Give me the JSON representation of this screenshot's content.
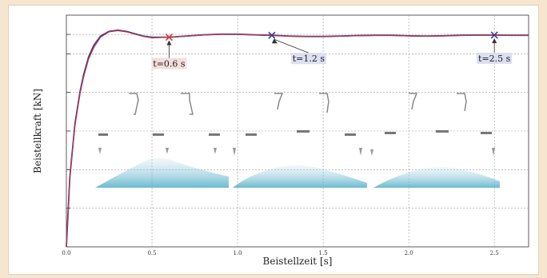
{
  "chart_data": {
    "type": "line",
    "xlabel": "Beistellzeit [s]",
    "ylabel": "Beistellkraft [kN]",
    "xlim": [
      0,
      2.7
    ],
    "ylim": [
      0,
      1.0
    ],
    "x_ticks": [
      "0.0",
      "0.5",
      "1.0",
      "1.5",
      "2.0",
      "2.5"
    ],
    "x_tick_values": [
      0,
      0.5,
      1.0,
      1.5,
      2.0,
      2.5
    ],
    "y_gridlines": [
      0.167,
      0.333,
      0.5,
      0.667,
      0.833,
      0.917
    ],
    "grid": true,
    "series": [
      {
        "color": "#3f3f9a",
        "x": [
          0,
          0.02,
          0.05,
          0.08,
          0.1,
          0.13,
          0.16,
          0.2,
          0.25,
          0.3,
          0.35,
          0.4,
          0.45,
          0.5,
          0.55,
          0.6,
          0.7,
          0.8,
          0.9,
          1.0,
          1.1,
          1.2,
          1.3,
          1.4,
          1.5,
          1.6,
          1.7,
          1.8,
          1.9,
          2.0,
          2.1,
          2.2,
          2.3,
          2.4,
          2.5,
          2.6,
          2.7
        ],
        "y": [
          0,
          0.3,
          0.53,
          0.67,
          0.74,
          0.82,
          0.87,
          0.91,
          0.93,
          0.935,
          0.93,
          0.92,
          0.91,
          0.905,
          0.905,
          0.905,
          0.91,
          0.915,
          0.918,
          0.918,
          0.915,
          0.913,
          0.91,
          0.908,
          0.908,
          0.91,
          0.912,
          0.913,
          0.913,
          0.911,
          0.91,
          0.911,
          0.913,
          0.914,
          0.914,
          0.913,
          0.913
        ]
      },
      {
        "color": "#c03a3a",
        "x": [
          0,
          0.02,
          0.05,
          0.08,
          0.1,
          0.13,
          0.16,
          0.2,
          0.25,
          0.3,
          0.35,
          0.4,
          0.45,
          0.5,
          0.55,
          0.6,
          0.7,
          0.8,
          0.9,
          1.0,
          1.1,
          1.2,
          1.3,
          1.4,
          1.5,
          1.6,
          1.7,
          1.8,
          1.9,
          2.0,
          2.1,
          2.2,
          2.3,
          2.4,
          2.5,
          2.6,
          2.7
        ],
        "y": [
          0,
          0.3,
          0.52,
          0.66,
          0.73,
          0.81,
          0.86,
          0.905,
          0.928,
          0.933,
          0.928,
          0.918,
          0.908,
          0.902,
          0.903,
          0.904,
          0.909,
          0.914,
          0.917,
          0.917,
          0.914,
          0.912,
          0.909,
          0.907,
          0.907,
          0.909,
          0.911,
          0.912,
          0.912,
          0.91,
          0.909,
          0.91,
          0.912,
          0.913,
          0.913,
          0.912,
          0.912
        ]
      }
    ],
    "annotations": [
      {
        "label": "t=0.6 s",
        "x": 0.6,
        "y": 0.905,
        "marker_color": "#d13b3b",
        "box_color": "#f3dede"
      },
      {
        "label": "t=1.2 s",
        "x": 1.2,
        "y": 0.913,
        "marker_color": "#3b3b9a",
        "box_color": "#dcdff0"
      },
      {
        "label": "t=2.5 s",
        "x": 2.5,
        "y": 0.914,
        "marker_color": "#3b3b9a",
        "box_color": "#dcdff0"
      }
    ]
  }
}
